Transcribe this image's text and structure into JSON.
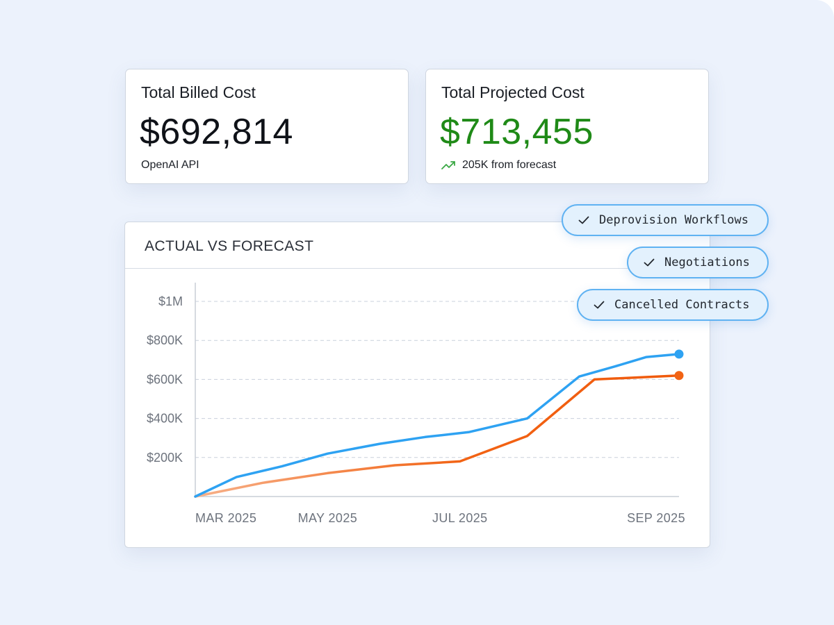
{
  "cards": {
    "billed": {
      "title": "Total Billed Cost",
      "value": "$692,814",
      "subtitle": "OpenAI API"
    },
    "projected": {
      "title": "Total Projected Cost",
      "value": "$713,455",
      "trend_text": "205K from forecast",
      "trend_icon": "trending-up-icon",
      "value_color": "#1f8a17"
    }
  },
  "chips": [
    {
      "label": "Deprovision Workflows",
      "icon": "check-icon"
    },
    {
      "label": "Negotiations",
      "icon": "check-icon"
    },
    {
      "label": "Cancelled Contracts",
      "icon": "check-icon"
    }
  ],
  "chart": {
    "title": "ACTUAL VS FORECAST"
  },
  "chart_data": {
    "type": "line",
    "title": "ACTUAL VS FORECAST",
    "y_ticks": [
      "$200K",
      "$400K",
      "$600K",
      "$800K",
      "$1M"
    ],
    "y_tick_values": [
      200000,
      400000,
      600000,
      800000,
      1000000
    ],
    "x_ticks": [
      "MAR 2025",
      "MAY 2025",
      "JUL 2025",
      "SEP 2025"
    ],
    "x_tick_values": [
      "2025-03-01",
      "2025-05-01",
      "2025-07-01",
      "2025-09-01"
    ],
    "ylim": [
      0,
      1000000
    ],
    "grid": true,
    "series": [
      {
        "color": "#2ea2f2",
        "points": [
          [
            "2025-03-01",
            0
          ],
          [
            "2025-03-20",
            100000
          ],
          [
            "2025-04-10",
            155000
          ],
          [
            "2025-05-01",
            220000
          ],
          [
            "2025-05-25",
            270000
          ],
          [
            "2025-06-15",
            305000
          ],
          [
            "2025-07-05",
            330000
          ],
          [
            "2025-08-01",
            400000
          ],
          [
            "2025-08-25",
            615000
          ],
          [
            "2025-09-10",
            665000
          ],
          [
            "2025-09-25",
            715000
          ],
          [
            "2025-10-10",
            730000
          ]
        ]
      },
      {
        "color": "#f26314",
        "points": [
          [
            "2025-03-01",
            0
          ],
          [
            "2025-04-01",
            70000
          ],
          [
            "2025-05-01",
            120000
          ],
          [
            "2025-06-01",
            160000
          ],
          [
            "2025-07-01",
            180000
          ],
          [
            "2025-08-01",
            310000
          ],
          [
            "2025-09-01",
            600000
          ],
          [
            "2025-10-10",
            620000
          ]
        ]
      }
    ]
  }
}
